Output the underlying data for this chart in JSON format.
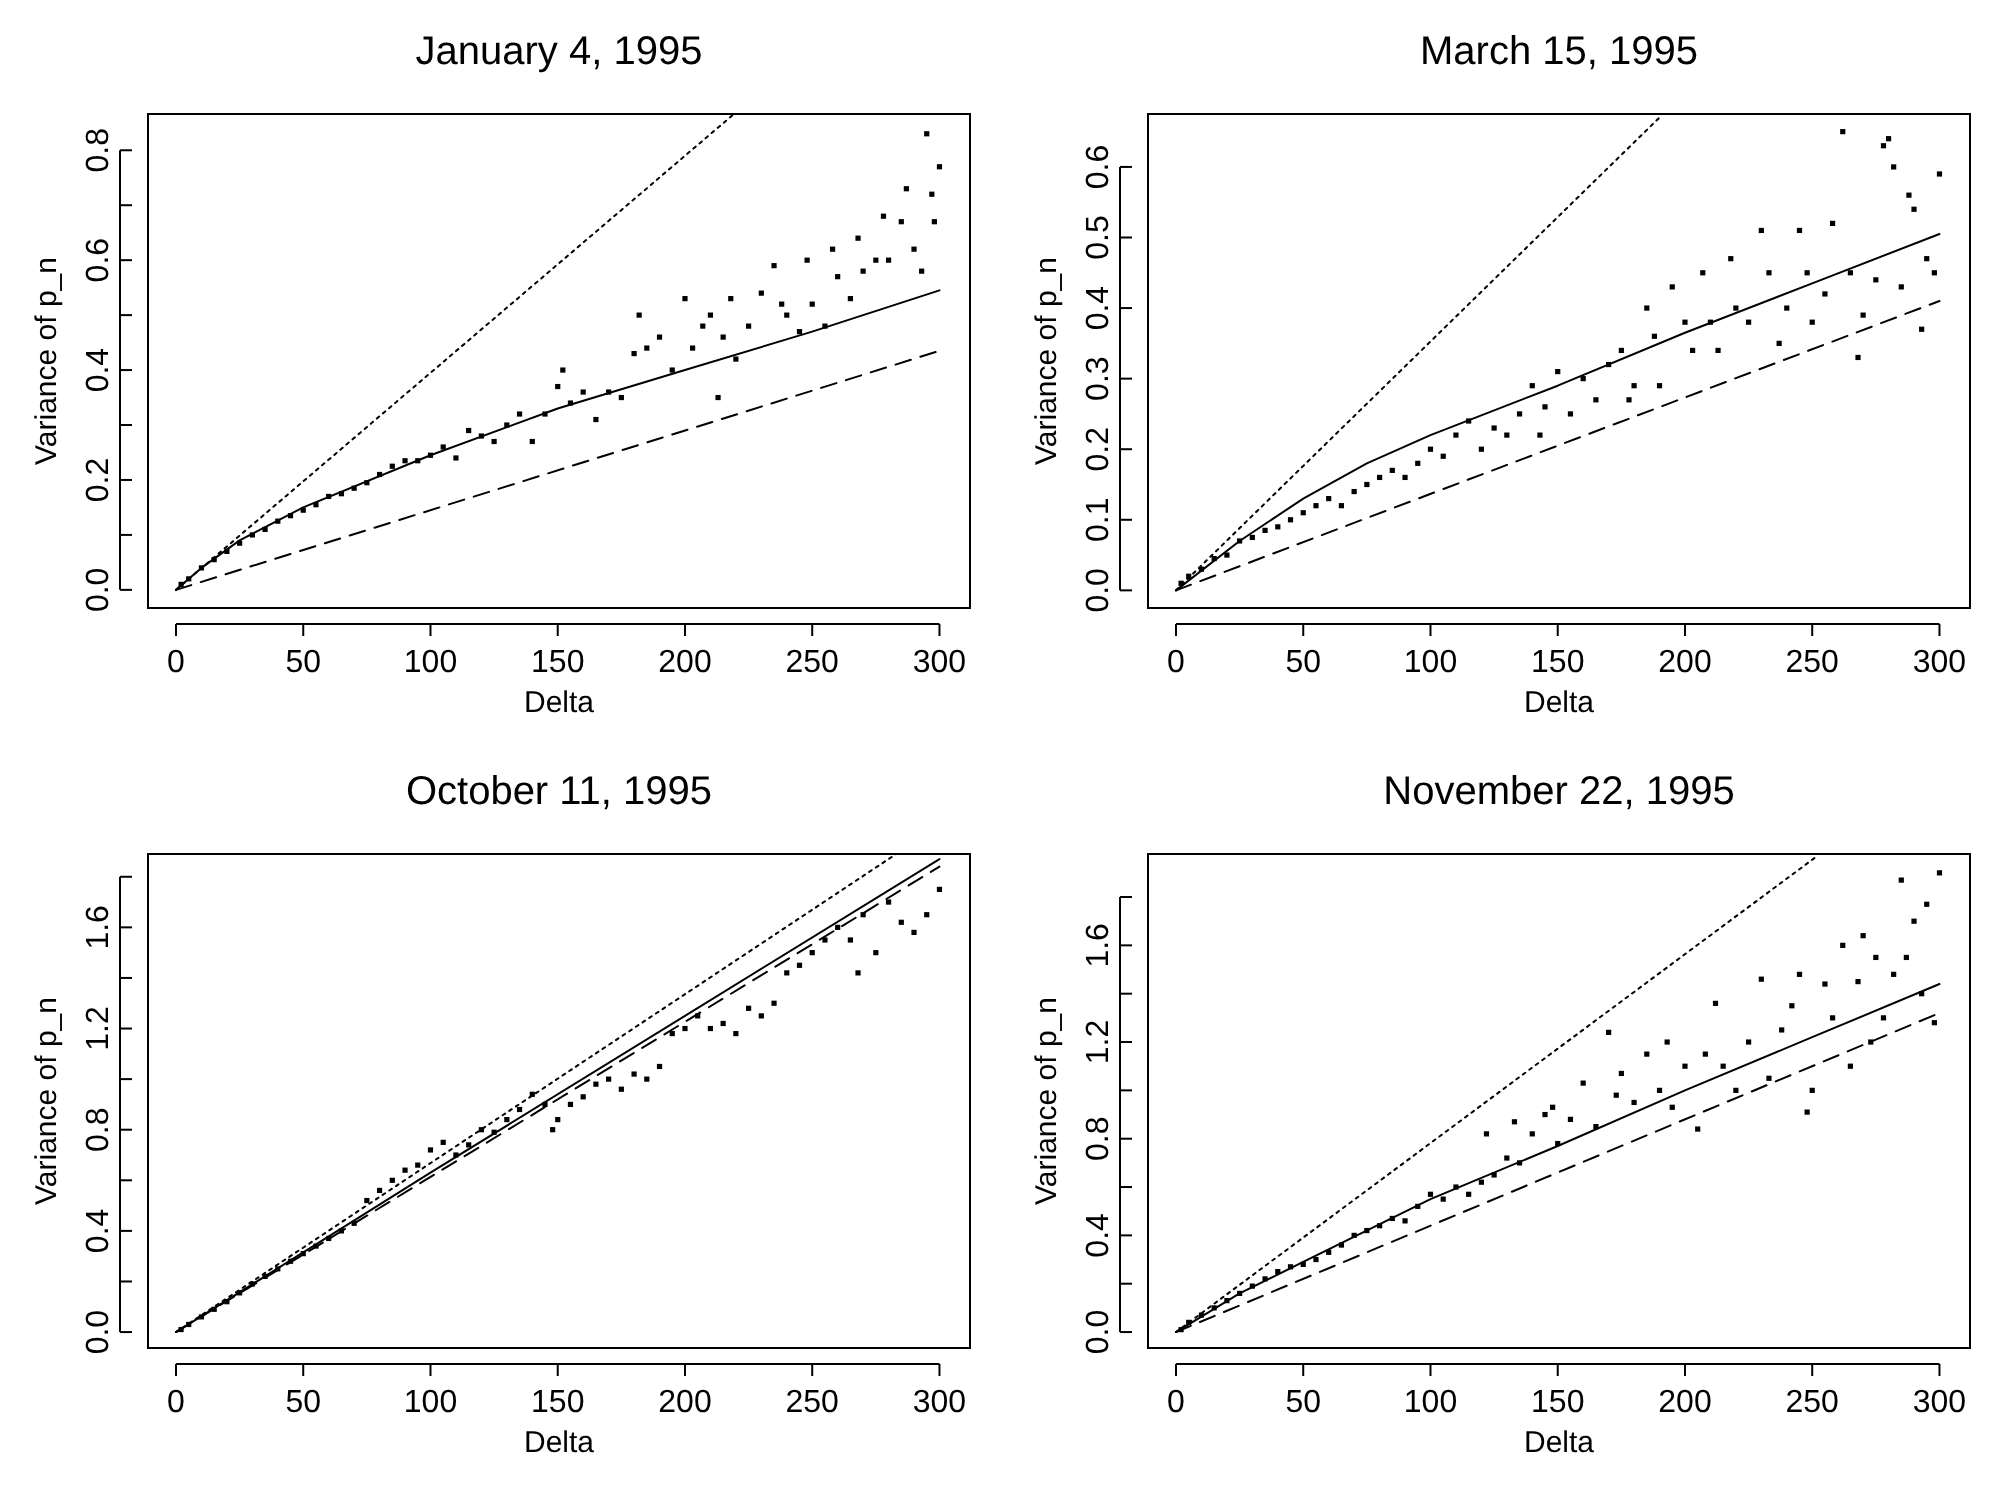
{
  "chart_data": [
    {
      "type": "scatter",
      "title": "January 4, 1995",
      "xlabel": "Delta",
      "ylabel": "Variance of p_n",
      "xlim": [
        -11,
        312
      ],
      "ylim": [
        -0.033,
        0.866
      ],
      "xticks": [
        0,
        50,
        100,
        150,
        200,
        250,
        300
      ],
      "yticks": [
        {
          "value": 0,
          "label": "0.0"
        },
        {
          "value": 0.1,
          "label": null
        },
        {
          "value": 0.2,
          "label": "0.2"
        },
        {
          "value": 0.3,
          "label": null
        },
        {
          "value": 0.4,
          "label": "0.4"
        },
        {
          "value": 0.5,
          "label": null
        },
        {
          "value": 0.6,
          "label": "0.6"
        },
        {
          "value": 0.7,
          "label": null
        },
        {
          "value": 0.8,
          "label": "0.8"
        }
      ],
      "series": [
        {
          "type": "scatter",
          "marker": "square",
          "color": "#000000",
          "x": [
            2,
            5,
            10,
            15,
            20,
            25,
            30,
            35,
            40,
            45,
            50,
            55,
            60,
            65,
            70,
            75,
            80,
            85,
            90,
            95,
            100,
            105,
            110,
            115,
            120,
            125,
            130,
            135,
            140,
            145,
            150,
            152,
            155,
            160,
            165,
            170,
            175,
            180,
            182,
            185,
            190,
            195,
            200,
            203,
            207,
            210,
            213,
            215,
            218,
            220,
            225,
            230,
            235,
            238,
            240,
            245,
            248,
            250,
            255,
            258,
            260,
            265,
            268,
            270,
            275,
            278,
            280,
            285,
            287,
            290,
            293,
            295,
            297,
            298,
            300
          ],
          "values": [
            0.01,
            0.02,
            0.04,
            0.055,
            0.07,
            0.085,
            0.1,
            0.11,
            0.125,
            0.135,
            0.145,
            0.155,
            0.17,
            0.175,
            0.185,
            0.195,
            0.21,
            0.225,
            0.235,
            0.235,
            0.245,
            0.26,
            0.24,
            0.29,
            0.28,
            0.27,
            0.3,
            0.32,
            0.27,
            0.32,
            0.37,
            0.4,
            0.34,
            0.36,
            0.31,
            0.36,
            0.35,
            0.43,
            0.5,
            0.44,
            0.46,
            0.4,
            0.53,
            0.44,
            0.48,
            0.5,
            0.35,
            0.46,
            0.53,
            0.42,
            0.48,
            0.54,
            0.59,
            0.52,
            0.5,
            0.47,
            0.6,
            0.52,
            0.48,
            0.62,
            0.57,
            0.53,
            0.64,
            0.58,
            0.6,
            0.68,
            0.6,
            0.67,
            0.73,
            0.62,
            0.58,
            0.83,
            0.72,
            0.67,
            0.77
          ]
        },
        {
          "type": "line",
          "line_style": "solid",
          "color": "#000000",
          "x": [
            0,
            10,
            25,
            50,
            100,
            150,
            200,
            250,
            300
          ],
          "values": [
            0,
            0.04,
            0.09,
            0.15,
            0.245,
            0.33,
            0.4,
            0.47,
            0.545
          ]
        },
        {
          "type": "line",
          "line_style": "dashed",
          "color": "#000000",
          "x": [
            0,
            300
          ],
          "values": [
            0,
            0.435
          ]
        },
        {
          "type": "line",
          "line_style": "dotted",
          "color": "#000000",
          "x": [
            0,
            219
          ],
          "values": [
            0,
            0.865
          ]
        }
      ]
    },
    {
      "type": "scatter",
      "title": "March 15, 1995",
      "xlabel": "Delta",
      "ylabel": "Variance of p_n",
      "xlim": [
        -11,
        312
      ],
      "ylim": [
        -0.025,
        0.675
      ],
      "xticks": [
        0,
        50,
        100,
        150,
        200,
        250,
        300
      ],
      "yticks": [
        {
          "value": 0,
          "label": "0.0"
        },
        0.1,
        0.2,
        0.3,
        0.4,
        0.5,
        0.6
      ],
      "series": [
        {
          "type": "scatter",
          "marker": "square",
          "color": "#000000",
          "x": [
            2,
            5,
            10,
            15,
            20,
            25,
            30,
            35,
            40,
            45,
            50,
            55,
            60,
            65,
            70,
            75,
            80,
            85,
            90,
            95,
            100,
            105,
            110,
            115,
            120,
            125,
            130,
            135,
            140,
            143,
            145,
            150,
            155,
            160,
            165,
            170,
            175,
            178,
            180,
            185,
            188,
            190,
            195,
            200,
            203,
            207,
            210,
            213,
            218,
            220,
            225,
            230,
            233,
            237,
            240,
            245,
            248,
            250,
            255,
            258,
            262,
            265,
            268,
            270,
            275,
            278,
            280,
            282,
            285,
            288,
            290,
            293,
            295,
            298,
            300
          ],
          "values": [
            0.01,
            0.02,
            0.03,
            0.045,
            0.05,
            0.07,
            0.075,
            0.085,
            0.09,
            0.1,
            0.11,
            0.12,
            0.13,
            0.12,
            0.14,
            0.15,
            0.16,
            0.17,
            0.16,
            0.18,
            0.2,
            0.19,
            0.22,
            0.24,
            0.2,
            0.23,
            0.22,
            0.25,
            0.29,
            0.22,
            0.26,
            0.31,
            0.25,
            0.3,
            0.27,
            0.32,
            0.34,
            0.27,
            0.29,
            0.4,
            0.36,
            0.29,
            0.43,
            0.38,
            0.34,
            0.45,
            0.38,
            0.34,
            0.47,
            0.4,
            0.38,
            0.51,
            0.45,
            0.35,
            0.4,
            0.51,
            0.45,
            0.38,
            0.42,
            0.52,
            0.65,
            0.45,
            0.33,
            0.39,
            0.44,
            0.63,
            0.64,
            0.6,
            0.43,
            0.56,
            0.54,
            0.37,
            0.47,
            0.45,
            0.59
          ]
        },
        {
          "type": "line",
          "line_style": "solid",
          "color": "#000000",
          "x": [
            0,
            25,
            50,
            75,
            100,
            150,
            200,
            250,
            300
          ],
          "values": [
            0,
            0.07,
            0.13,
            0.18,
            0.22,
            0.29,
            0.365,
            0.435,
            0.505
          ]
        },
        {
          "type": "line",
          "line_style": "dashed",
          "color": "#000000",
          "x": [
            0,
            300
          ],
          "values": [
            0,
            0.41
          ]
        },
        {
          "type": "line",
          "line_style": "dotted",
          "color": "#000000",
          "x": [
            0,
            190
          ],
          "values": [
            0,
            0.67
          ]
        }
      ]
    },
    {
      "type": "scatter",
      "title": "October 11, 1995",
      "xlabel": "Delta",
      "ylabel": "Variance of p_n",
      "xlim": [
        -11,
        312
      ],
      "ylim": [
        -0.063,
        1.89
      ],
      "xticks": [
        0,
        50,
        100,
        150,
        200,
        250,
        300
      ],
      "yticks": [
        {
          "value": 0,
          "label": "0.0"
        },
        {
          "value": 0.2,
          "label": null
        },
        0.4,
        {
          "value": 0.6,
          "label": null
        },
        0.8,
        {
          "value": 1.0,
          "label": null
        },
        1.2,
        {
          "value": 1.4,
          "label": null
        },
        1.6,
        {
          "value": 1.8,
          "label": null
        }
      ],
      "series": [
        {
          "type": "scatter",
          "marker": "square",
          "color": "#000000",
          "x": [
            2,
            5,
            10,
            15,
            20,
            25,
            30,
            35,
            40,
            45,
            50,
            55,
            60,
            65,
            70,
            75,
            80,
            85,
            90,
            95,
            100,
            105,
            110,
            115,
            120,
            125,
            130,
            135,
            140,
            145,
            148,
            150,
            155,
            160,
            165,
            170,
            175,
            180,
            185,
            190,
            195,
            200,
            205,
            210,
            215,
            220,
            225,
            230,
            235,
            240,
            245,
            250,
            255,
            260,
            265,
            268,
            270,
            275,
            280,
            285,
            290,
            295,
            300
          ],
          "values": [
            0.01,
            0.03,
            0.06,
            0.09,
            0.12,
            0.155,
            0.19,
            0.22,
            0.25,
            0.28,
            0.31,
            0.34,
            0.37,
            0.4,
            0.43,
            0.52,
            0.56,
            0.6,
            0.64,
            0.66,
            0.72,
            0.75,
            0.7,
            0.74,
            0.8,
            0.79,
            0.84,
            0.88,
            0.94,
            0.9,
            0.8,
            0.84,
            0.9,
            0.93,
            0.98,
            1.0,
            0.96,
            1.02,
            1.0,
            1.05,
            1.18,
            1.2,
            1.25,
            1.2,
            1.22,
            1.18,
            1.28,
            1.25,
            1.3,
            1.42,
            1.45,
            1.5,
            1.55,
            1.6,
            1.55,
            1.42,
            1.65,
            1.5,
            1.7,
            1.62,
            1.58,
            1.65,
            1.75
          ]
        },
        {
          "type": "line",
          "line_style": "solid",
          "color": "#000000",
          "x": [
            0,
            100,
            200,
            300
          ],
          "values": [
            0,
            0.63,
            1.25,
            1.87
          ]
        },
        {
          "type": "line",
          "line_style": "dashed",
          "color": "#000000",
          "x": [
            0,
            300
          ],
          "values": [
            0,
            1.84
          ]
        },
        {
          "type": "line",
          "line_style": "dotted",
          "color": "#000000",
          "x": [
            0,
            283
          ],
          "values": [
            0,
            1.89
          ]
        }
      ]
    },
    {
      "type": "scatter",
      "title": "November 22, 1995",
      "xlabel": "Delta",
      "ylabel": "Variance of p_n",
      "xlim": [
        -11,
        312
      ],
      "ylim": [
        -0.066,
        1.978
      ],
      "xticks": [
        0,
        50,
        100,
        150,
        200,
        250,
        300
      ],
      "yticks": [
        {
          "value": 0,
          "label": "0.0"
        },
        {
          "value": 0.2,
          "label": null
        },
        0.4,
        {
          "value": 0.6,
          "label": null
        },
        0.8,
        {
          "value": 1.0,
          "label": null
        },
        1.2,
        {
          "value": 1.4,
          "label": null
        },
        1.6,
        {
          "value": 1.8,
          "label": null
        }
      ],
      "series": [
        {
          "type": "scatter",
          "marker": "square",
          "color": "#000000",
          "x": [
            2,
            5,
            10,
            15,
            20,
            25,
            30,
            35,
            40,
            45,
            50,
            55,
            60,
            65,
            70,
            75,
            80,
            85,
            90,
            95,
            100,
            105,
            110,
            115,
            120,
            122,
            125,
            130,
            133,
            135,
            140,
            145,
            148,
            150,
            155,
            160,
            165,
            170,
            173,
            175,
            180,
            185,
            190,
            193,
            195,
            200,
            205,
            208,
            212,
            215,
            220,
            225,
            230,
            233,
            238,
            242,
            245,
            248,
            250,
            255,
            258,
            262,
            265,
            268,
            270,
            273,
            275,
            278,
            282,
            285,
            287,
            290,
            293,
            295,
            298,
            300
          ],
          "values": [
            0.01,
            0.04,
            0.07,
            0.1,
            0.13,
            0.16,
            0.19,
            0.22,
            0.25,
            0.27,
            0.28,
            0.3,
            0.33,
            0.36,
            0.4,
            0.42,
            0.44,
            0.47,
            0.46,
            0.52,
            0.57,
            0.55,
            0.6,
            0.57,
            0.62,
            0.82,
            0.65,
            0.72,
            0.87,
            0.7,
            0.82,
            0.9,
            0.93,
            0.78,
            0.88,
            1.03,
            0.85,
            1.24,
            0.98,
            1.07,
            0.95,
            1.15,
            1.0,
            1.2,
            0.93,
            1.1,
            0.84,
            1.15,
            1.36,
            1.1,
            1.0,
            1.2,
            1.46,
            1.05,
            1.25,
            1.35,
            1.48,
            0.91,
            1.0,
            1.44,
            1.3,
            1.6,
            1.1,
            1.45,
            1.64,
            1.2,
            1.55,
            1.3,
            1.48,
            1.87,
            1.55,
            1.7,
            1.4,
            1.77,
            1.28,
            1.9
          ]
        },
        {
          "type": "line",
          "line_style": "solid",
          "color": "#000000",
          "x": [
            0,
            25,
            50,
            100,
            150,
            200,
            250,
            300
          ],
          "values": [
            0,
            0.16,
            0.29,
            0.55,
            0.77,
            1.0,
            1.22,
            1.44
          ]
        },
        {
          "type": "line",
          "line_style": "dashed",
          "color": "#000000",
          "x": [
            0,
            300
          ],
          "values": [
            0,
            1.32
          ]
        },
        {
          "type": "line",
          "line_style": "dotted",
          "color": "#000000",
          "x": [
            0,
            252
          ],
          "values": [
            0,
            1.97
          ]
        }
      ]
    }
  ]
}
